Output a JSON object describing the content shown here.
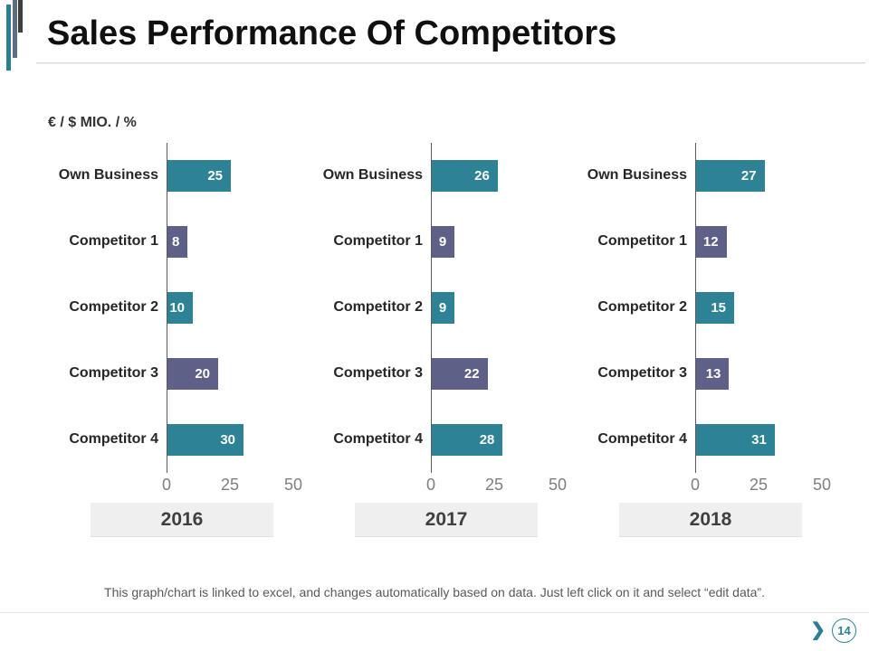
{
  "slide": {
    "title": "Sales Performance Of Competitors",
    "units_label": "€ / $ MIO. / %",
    "footer_note": "This graph/chart is linked to excel, and changes automatically based on data. Just left click on it and select “edit data”.",
    "page_number": "14",
    "next_chevron": "❯"
  },
  "colors": {
    "teal": "#2d8296",
    "purple": "#5f6087",
    "axis": "#595959",
    "tick_label": "#7f7f7f",
    "category_label": "#262626",
    "year_box_bg": "#efefef",
    "year_text": "#3f3f3f",
    "decor_teal": "#2b7d8f",
    "decor_gray": "#5c6e80",
    "decor_dark": "#3f3f3f",
    "accent_teal": "#2e7f95"
  },
  "chart_data": [
    {
      "type": "bar",
      "orientation": "horizontal",
      "group_label": "2016",
      "categories": [
        "Own Business",
        "Competitor 1",
        "Competitor 2",
        "Competitor 3",
        "Competitor 4"
      ],
      "values": [
        25,
        8,
        10,
        20,
        30
      ],
      "bar_colors": [
        "#2d8296",
        "#5f6087",
        "#2d8296",
        "#5f6087",
        "#2d8296"
      ],
      "xlim": [
        0,
        50
      ],
      "ticks": [
        0,
        25,
        50
      ]
    },
    {
      "type": "bar",
      "orientation": "horizontal",
      "group_label": "2017",
      "categories": [
        "Own Business",
        "Competitor 1",
        "Competitor 2",
        "Competitor 3",
        "Competitor 4"
      ],
      "values": [
        26,
        9,
        9,
        22,
        28
      ],
      "bar_colors": [
        "#2d8296",
        "#5f6087",
        "#2d8296",
        "#5f6087",
        "#2d8296"
      ],
      "xlim": [
        0,
        50
      ],
      "ticks": [
        0,
        25,
        50
      ]
    },
    {
      "type": "bar",
      "orientation": "horizontal",
      "group_label": "2018",
      "categories": [
        "Own Business",
        "Competitor 1",
        "Competitor 2",
        "Competitor 3",
        "Competitor 4"
      ],
      "values": [
        27,
        12,
        15,
        13,
        31
      ],
      "bar_colors": [
        "#2d8296",
        "#5f6087",
        "#2d8296",
        "#5f6087",
        "#2d8296"
      ],
      "xlim": [
        0,
        50
      ],
      "ticks": [
        0,
        25,
        50
      ]
    }
  ]
}
